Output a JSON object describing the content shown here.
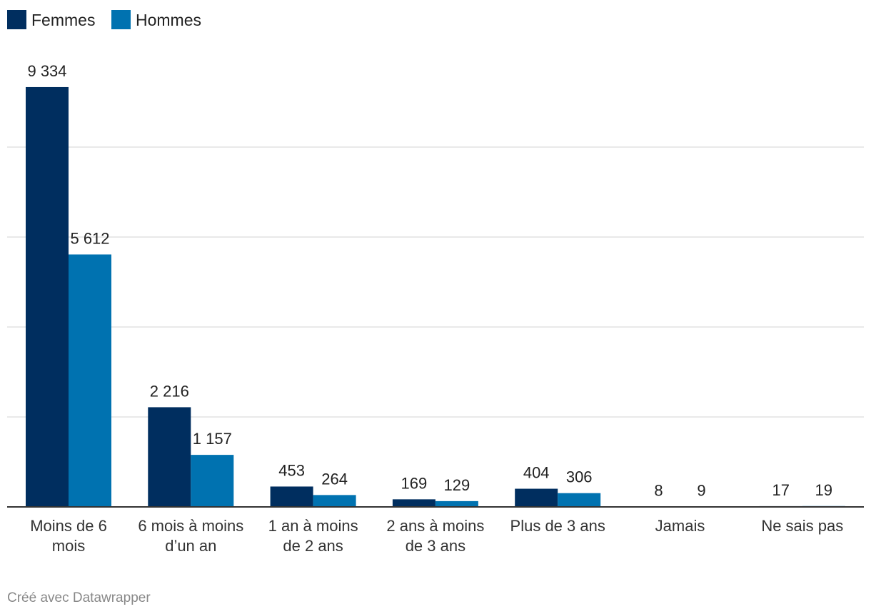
{
  "chart_data": {
    "type": "bar",
    "categories": [
      "Moins de 6 mois",
      "6 mois à moins d’un an",
      "1 an à moins de 2 ans",
      "2 ans à moins de 3 ans",
      "Plus de 3 ans",
      "Jamais",
      "Ne sais pas"
    ],
    "series": [
      {
        "name": "Femmes",
        "values": [
          9334,
          2216,
          453,
          169,
          404,
          8,
          17
        ],
        "labels": [
          "9 334",
          "2 216",
          "453",
          "169",
          "404",
          "8",
          "17"
        ],
        "color": "#002e5f"
      },
      {
        "name": "Hommes",
        "values": [
          5612,
          1157,
          264,
          129,
          306,
          9,
          19
        ],
        "labels": [
          "5 612",
          "1 157",
          "264",
          "129",
          "306",
          "9",
          "19"
        ],
        "color": "#0072b0"
      }
    ],
    "ylim": [
      0,
      10000
    ],
    "grid": true,
    "legend": "top-left"
  },
  "credit": "Créé avec Datawrapper"
}
